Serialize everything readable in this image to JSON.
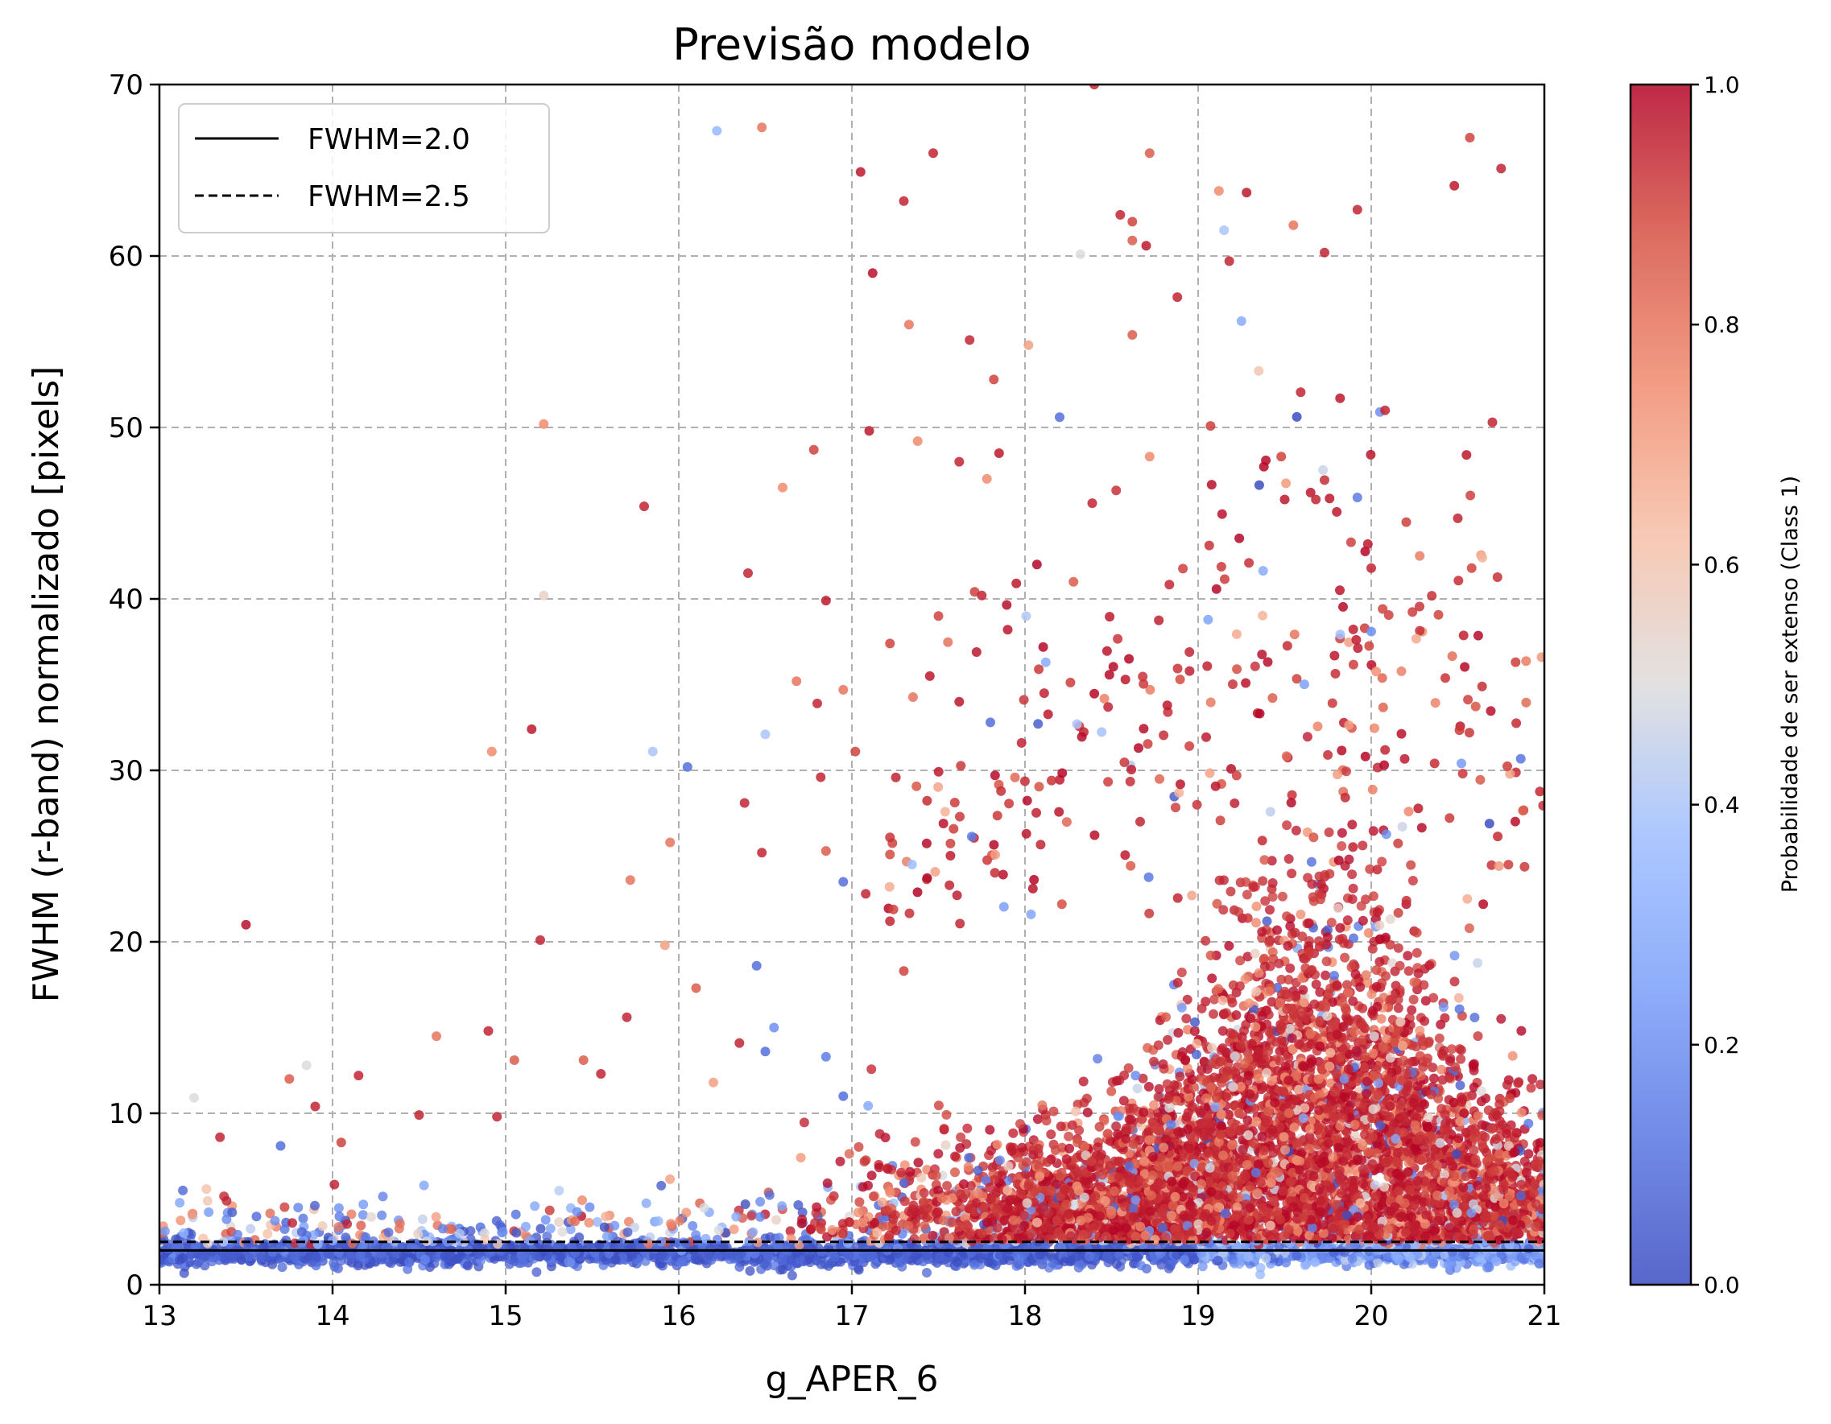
{
  "chart_data": {
    "type": "scatter",
    "title": "Previsão modelo",
    "xlabel": "g_APER_6",
    "ylabel": "FWHM (r-band) normalizado [pixels]",
    "xlim": [
      13,
      21
    ],
    "ylim": [
      0,
      70
    ],
    "x_ticks": [
      "13",
      "14",
      "15",
      "16",
      "17",
      "18",
      "19",
      "20",
      "21"
    ],
    "y_ticks": [
      "0",
      "10",
      "20",
      "30",
      "40",
      "50",
      "60",
      "70"
    ],
    "grid": true,
    "colormap": "coolwarm",
    "colorbar": {
      "label": "Probabilidade de ser extenso (Class 1)",
      "range": [
        0,
        1
      ],
      "ticks": [
        "0.0",
        "0.2",
        "0.4",
        "0.6",
        "0.8",
        "1.0"
      ]
    },
    "reference_lines": [
      {
        "name": "FWHM=2.0",
        "y": 2.0,
        "style": "solid",
        "color": "#000000"
      },
      {
        "name": "FWHM=2.5",
        "y": 2.5,
        "style": "dashed",
        "color": "#000000"
      }
    ],
    "legend": {
      "placement": "top-left",
      "entries": [
        "FWHM=2.0",
        "FWHM=2.5"
      ]
    },
    "points": [
      [
        13.5,
        21.0,
        0.98
      ],
      [
        13.2,
        10.9,
        0.5
      ],
      [
        13.35,
        8.6,
        0.95
      ],
      [
        13.75,
        12.0,
        0.85
      ],
      [
        13.7,
        8.1,
        0.1
      ],
      [
        13.9,
        10.4,
        0.95
      ],
      [
        13.85,
        12.8,
        0.5
      ],
      [
        14.15,
        12.2,
        0.95
      ],
      [
        14.05,
        8.3,
        0.9
      ],
      [
        14.5,
        9.9,
        0.95
      ],
      [
        14.6,
        14.5,
        0.8
      ],
      [
        14.9,
        14.8,
        0.95
      ],
      [
        14.95,
        9.8,
        0.95
      ],
      [
        14.92,
        31.1,
        0.75
      ],
      [
        15.15,
        32.4,
        0.97
      ],
      [
        15.22,
        40.2,
        0.55
      ],
      [
        15.22,
        50.2,
        0.75
      ],
      [
        15.2,
        20.1,
        0.95
      ],
      [
        15.05,
        13.1,
        0.85
      ],
      [
        15.45,
        13.1,
        0.85
      ],
      [
        15.55,
        12.3,
        0.95
      ],
      [
        15.7,
        15.6,
        0.95
      ],
      [
        15.72,
        23.6,
        0.8
      ],
      [
        15.8,
        45.4,
        0.95
      ],
      [
        15.85,
        31.1,
        0.4
      ],
      [
        15.95,
        25.8,
        0.8
      ],
      [
        15.92,
        19.8,
        0.7
      ],
      [
        16.05,
        30.2,
        0.1
      ],
      [
        16.1,
        17.3,
        0.85
      ],
      [
        16.22,
        67.3,
        0.35
      ],
      [
        16.48,
        67.5,
        0.8
      ],
      [
        16.5,
        32.1,
        0.4
      ],
      [
        16.38,
        28.1,
        0.95
      ],
      [
        16.48,
        25.2,
        0.95
      ],
      [
        16.45,
        18.6,
        0.1
      ],
      [
        16.4,
        41.5,
        0.95
      ],
      [
        16.35,
        14.1,
        0.95
      ],
      [
        16.6,
        46.5,
        0.75
      ],
      [
        16.68,
        35.2,
        0.8
      ],
      [
        16.78,
        48.7,
        0.9
      ],
      [
        16.85,
        39.9,
        0.97
      ],
      [
        16.8,
        33.9,
        0.95
      ],
      [
        16.82,
        29.6,
        0.95
      ],
      [
        16.85,
        25.3,
        0.85
      ],
      [
        16.95,
        23.5,
        0.1
      ],
      [
        16.95,
        34.7,
        0.8
      ],
      [
        17.02,
        31.1,
        0.9
      ],
      [
        17.05,
        64.9,
        0.97
      ],
      [
        17.12,
        59.0,
        0.98
      ],
      [
        17.1,
        49.8,
        0.97
      ],
      [
        17.22,
        37.4,
        0.9
      ],
      [
        17.3,
        63.2,
        0.95
      ],
      [
        17.33,
        56.0,
        0.8
      ],
      [
        17.38,
        49.2,
        0.75
      ],
      [
        17.47,
        66.0,
        0.95
      ],
      [
        17.5,
        39.0,
        0.9
      ],
      [
        17.62,
        48.0,
        0.95
      ],
      [
        17.68,
        55.1,
        0.95
      ],
      [
        17.78,
        47.0,
        0.75
      ],
      [
        17.82,
        52.8,
        0.9
      ],
      [
        17.85,
        48.5,
        0.97
      ],
      [
        18.02,
        54.8,
        0.7
      ],
      [
        18.2,
        50.6,
        0.1
      ],
      [
        18.28,
        41.0,
        0.85
      ],
      [
        18.32,
        60.1,
        0.5
      ],
      [
        18.4,
        70.0,
        0.95
      ],
      [
        18.55,
        62.4,
        0.95
      ],
      [
        18.62,
        62.0,
        0.9
      ],
      [
        18.62,
        60.9,
        0.85
      ],
      [
        18.7,
        60.6,
        0.97
      ],
      [
        18.72,
        66.0,
        0.85
      ],
      [
        18.62,
        55.4,
        0.85
      ],
      [
        18.72,
        48.3,
        0.75
      ],
      [
        18.88,
        57.6,
        0.95
      ],
      [
        19.12,
        63.8,
        0.75
      ],
      [
        19.15,
        61.5,
        0.4
      ],
      [
        19.18,
        59.7,
        0.95
      ],
      [
        19.28,
        63.7,
        0.97
      ],
      [
        19.25,
        56.2,
        0.3
      ],
      [
        19.35,
        53.3,
        0.6
      ],
      [
        19.55,
        61.8,
        0.8
      ],
      [
        19.73,
        60.2,
        0.95
      ],
      [
        19.92,
        62.7,
        0.95
      ],
      [
        19.82,
        51.7,
        0.97
      ],
      [
        20.05,
        50.9,
        0.2
      ],
      [
        20.08,
        51.0,
        0.95
      ],
      [
        20.48,
        64.1,
        0.97
      ],
      [
        20.57,
        66.9,
        0.9
      ],
      [
        20.75,
        65.1,
        0.95
      ],
      [
        20.7,
        50.3,
        0.95
      ],
      [
        20.55,
        48.4,
        0.97
      ],
      [
        20.5,
        44.7,
        0.95
      ],
      [
        20.58,
        41.8,
        0.9
      ],
      [
        20.0,
        38.1,
        0.2
      ],
      [
        20.0,
        41.8,
        0.95
      ],
      [
        19.48,
        48.3,
        0.9
      ],
      [
        19.5,
        45.8,
        0.97
      ],
      [
        19.65,
        46.2,
        0.97
      ],
      [
        19.68,
        45.8,
        0.95
      ],
      [
        18.95,
        36.9,
        0.95
      ],
      [
        18.58,
        35.3,
        0.97
      ],
      [
        18.48,
        33.7,
        0.95
      ],
      [
        18.3,
        32.7,
        0.4
      ],
      [
        18.12,
        36.3,
        0.3
      ],
      [
        17.95,
        40.9,
        0.97
      ],
      [
        17.9,
        38.2,
        0.97
      ],
      [
        17.75,
        40.2,
        0.95
      ],
      [
        17.72,
        36.9,
        0.97
      ],
      [
        17.62,
        34.0,
        0.97
      ],
      [
        17.45,
        35.5,
        0.97
      ],
      [
        17.8,
        32.8,
        0.1
      ],
      [
        17.98,
        31.6,
        0.95
      ],
      [
        16.2,
        11.8,
        0.7
      ],
      [
        16.55,
        15.0,
        0.2
      ],
      [
        16.85,
        13.3,
        0.15
      ],
      [
        16.95,
        11.0,
        0.1
      ],
      [
        16.5,
        13.6,
        0.1
      ],
      [
        17.22,
        21.2,
        0.95
      ],
      [
        17.08,
        22.8,
        0.95
      ],
      [
        17.3,
        18.3,
        0.9
      ]
    ]
  }
}
